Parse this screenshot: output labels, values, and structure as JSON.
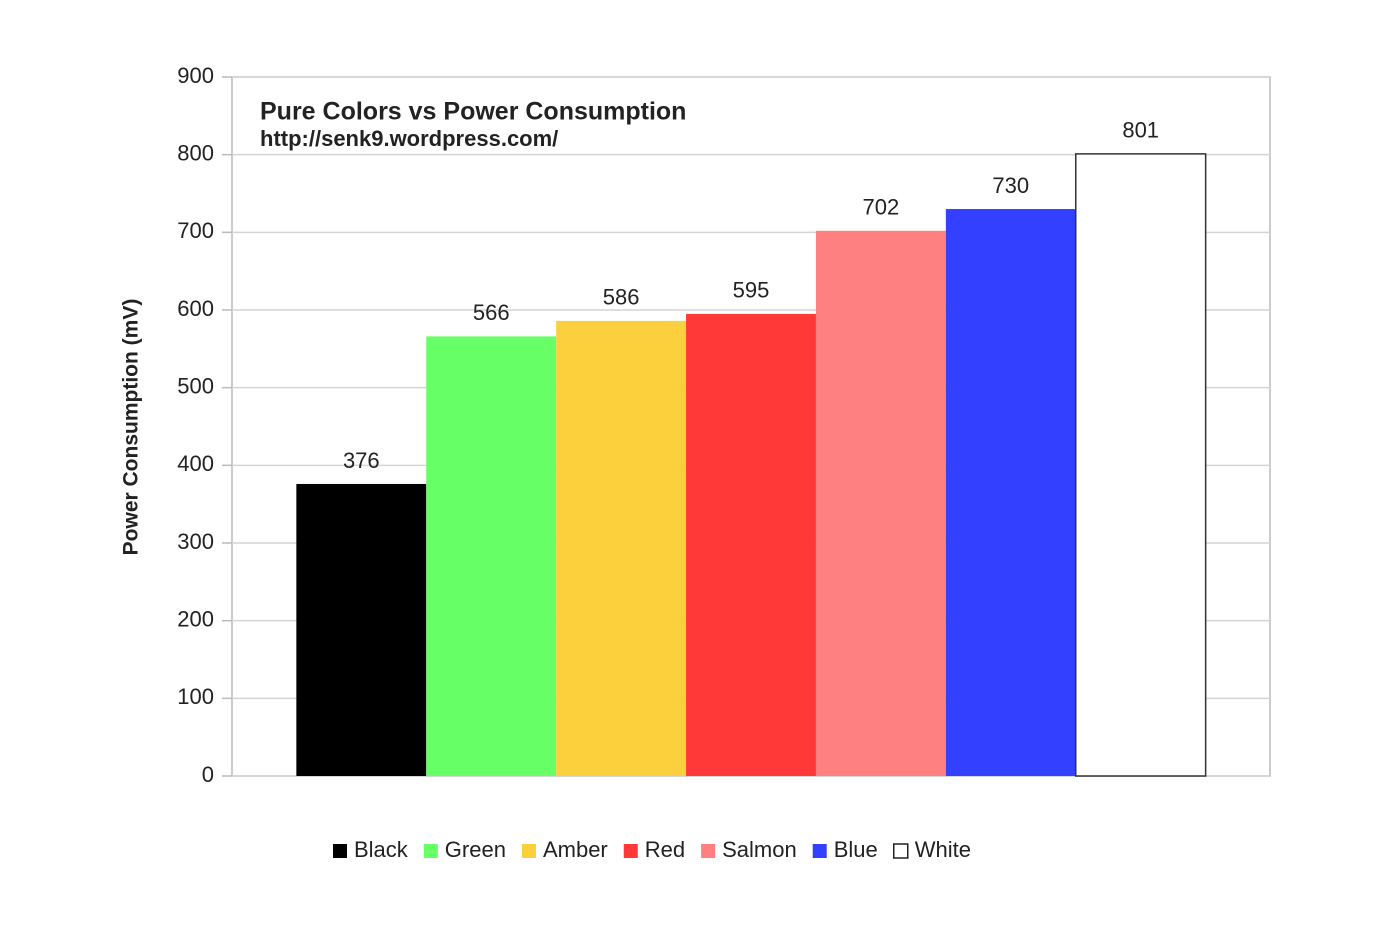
{
  "chart_data": {
    "type": "bar",
    "title": "Pure Colors vs Power Consumption",
    "subtitle": "http://senk9.wordpress.com/",
    "y_label": "Power Consumption (mV)",
    "categories": [
      null
    ],
    "series": [
      {
        "name": "Black",
        "color": "#000000",
        "values": [
          376
        ]
      },
      {
        "name": "Green",
        "color": "#66ff66",
        "values": [
          566
        ]
      },
      {
        "name": "Amber",
        "color": "#fcd03c",
        "values": [
          586
        ]
      },
      {
        "name": "Red",
        "color": "#ff3838",
        "values": [
          595
        ]
      },
      {
        "name": "Salmon",
        "color": "#ff8080",
        "values": [
          702
        ]
      },
      {
        "name": "Blue",
        "color": "#3340ff",
        "values": [
          730
        ]
      },
      {
        "name": "White",
        "color": "#ffffff",
        "values": [
          801
        ]
      }
    ],
    "ylim": [
      0,
      900
    ],
    "yticks": [
      0,
      100,
      200,
      300,
      400,
      500,
      600,
      700,
      800,
      900
    ],
    "grid": true,
    "legend": "bottom"
  }
}
